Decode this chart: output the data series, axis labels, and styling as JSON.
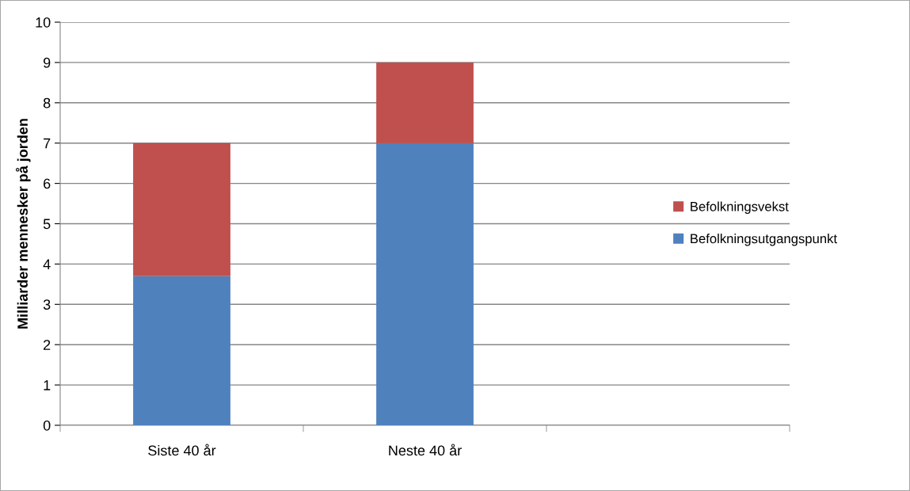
{
  "chart_data": {
    "type": "bar",
    "stacked": true,
    "ylabel": "Milliarder mennesker på jorden",
    "categories": [
      "Siste 40 år",
      "Neste 40 år",
      null
    ],
    "series": [
      {
        "name": "Befolkningsutgangspunkt",
        "color": "#4f81bd",
        "values": [
          3.7,
          7,
          null
        ]
      },
      {
        "name": "Befolkningsvekst",
        "color": "#c0504d",
        "values": [
          3.3,
          2,
          null
        ]
      }
    ],
    "ylim": [
      0,
      10
    ],
    "yticks": [
      0,
      1,
      2,
      3,
      4,
      5,
      6,
      7,
      8,
      9,
      10
    ],
    "grid": "y",
    "legend": "right"
  }
}
